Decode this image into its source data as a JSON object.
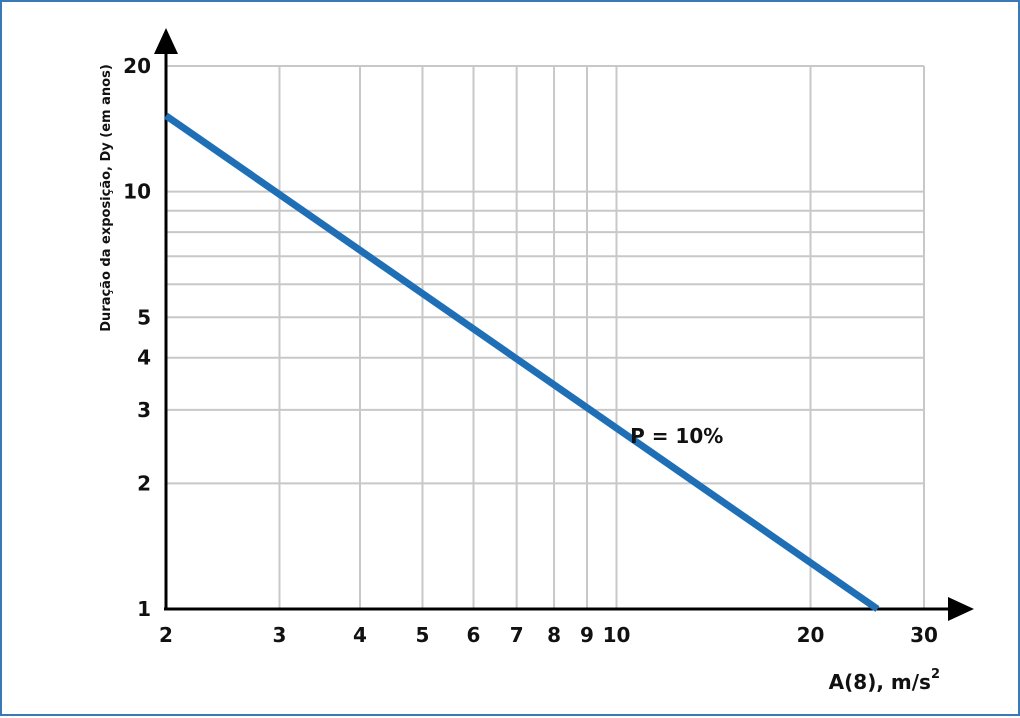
{
  "chart_data": {
    "type": "line",
    "x_scale": "log",
    "y_scale": "log",
    "xlim": [
      2,
      30
    ],
    "ylim": [
      1,
      20
    ],
    "x_ticks": [
      2,
      3,
      4,
      5,
      6,
      7,
      8,
      9,
      10,
      20,
      30
    ],
    "y_ticks": [
      1,
      2,
      3,
      4,
      5,
      10,
      20
    ],
    "x_tick_labels": [
      "2",
      "3",
      "4",
      "5",
      "6",
      "7",
      "8",
      "9",
      "10",
      "20",
      "30"
    ],
    "y_tick_labels": [
      "1",
      "2",
      "3",
      "4",
      "5",
      "10",
      "20"
    ],
    "x_grid": [
      3,
      4,
      5,
      6,
      7,
      8,
      9,
      10,
      20,
      30
    ],
    "y_grid": [
      2,
      3,
      4,
      5,
      6,
      7,
      8,
      9,
      10,
      20
    ],
    "ylabel": "Duração da exposição, Dy (em anos)",
    "xlabel": "A(8), m/s",
    "xlabel_superscript": "2",
    "grid": true,
    "series": [
      {
        "name": "P = 10%",
        "color": "#1f6fb7",
        "x": [
          2,
          25.4
        ],
        "y": [
          15.2,
          1.0
        ]
      }
    ],
    "annotations": [
      {
        "text": "P = 10%",
        "x": 12.4,
        "y": 2.6
      }
    ]
  }
}
